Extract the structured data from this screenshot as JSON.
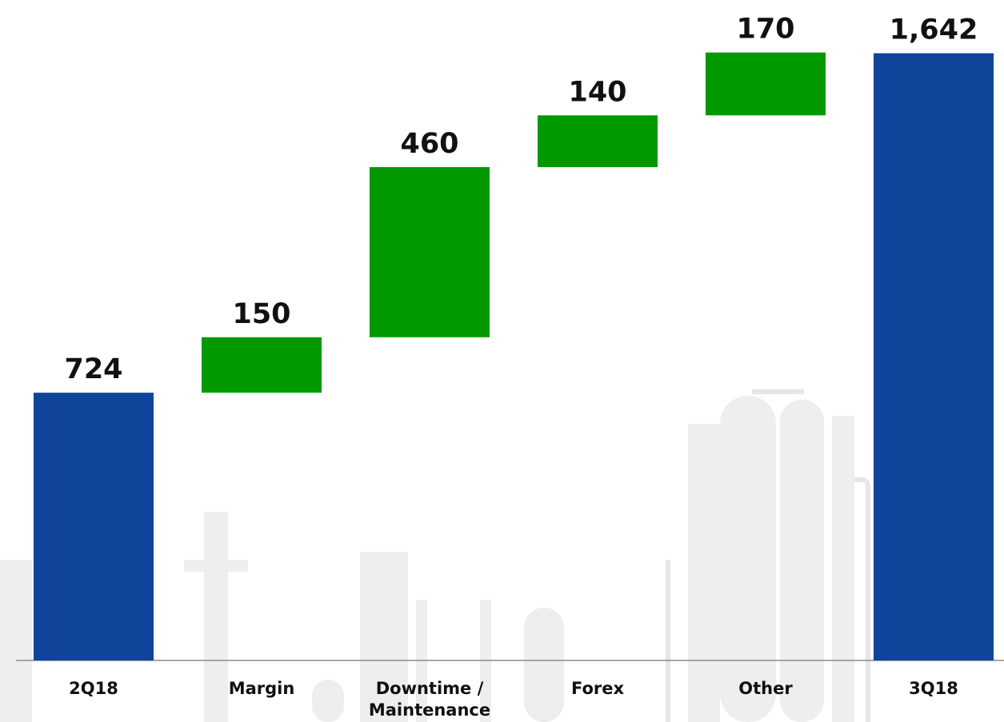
{
  "chart_data": {
    "type": "bar",
    "subtype": "waterfall",
    "title": "",
    "xlabel": "",
    "ylabel": "",
    "ylim": [
      0,
      1800
    ],
    "grid": false,
    "legend": "none",
    "categories": [
      "2Q18",
      "Margin",
      "Downtime /\nMaintenance",
      "Forex",
      "Other",
      "3Q18"
    ],
    "values": [
      724,
      150,
      460,
      140,
      170,
      1642
    ],
    "value_labels": [
      "724",
      "150",
      "460",
      "140",
      "170",
      "1,642"
    ],
    "bar_kinds": [
      "total",
      "increase",
      "increase",
      "increase",
      "increase",
      "total"
    ]
  },
  "colors": {
    "total": "#0f449a",
    "increase": "#009a00",
    "axis": "#8c8c8c",
    "text": "#111111",
    "background_art": "#eeeeee"
  }
}
